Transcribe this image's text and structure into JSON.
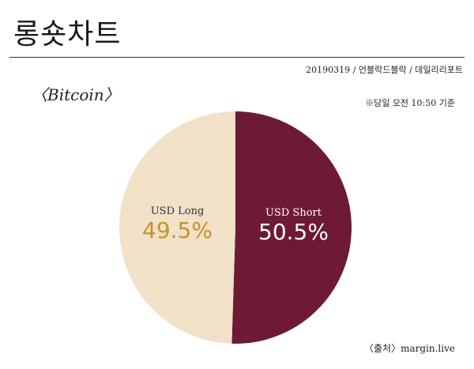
{
  "header": {
    "title": "롱숏차트",
    "meta": "20190319 / 언블락드블락 / 데일리리포트"
  },
  "subtitle": "〈Bitcoin〉",
  "note": "※당일 오전 10:50 기준",
  "source": "〈출처〉margin.live",
  "chart_data": {
    "type": "pie",
    "title": "〈Bitcoin〉",
    "slices": [
      {
        "name": "USD Short",
        "value": 50.5,
        "label": "50.5%",
        "color": "#6e1a34",
        "text_color": "#ffffff"
      },
      {
        "name": "USD Long",
        "value": 49.5,
        "label": "49.5%",
        "color": "#f0e1c8",
        "text_color": "#c8912e"
      }
    ]
  }
}
